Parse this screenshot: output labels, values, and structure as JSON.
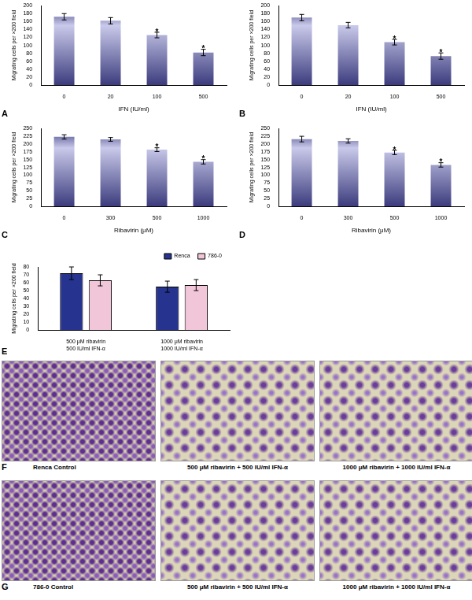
{
  "chart_data": [
    {
      "type": "bar",
      "panel": "A",
      "x_label": "IFN (IU/ml)",
      "y_label": "Migrating cells per ×200 field",
      "categories": [
        "0",
        "20",
        "100",
        "500"
      ],
      "values": [
        172,
        162,
        126,
        82
      ],
      "errors": [
        8,
        8,
        7,
        8
      ],
      "color": "#3c3c7e",
      "ylim": [
        0,
        200
      ],
      "yticks": [
        0,
        20,
        40,
        60,
        80,
        100,
        120,
        140,
        160,
        180,
        200
      ],
      "grid": false,
      "annotations": [
        {
          "category": "100",
          "text": "*"
        },
        {
          "category": "500",
          "text": "*"
        }
      ]
    },
    {
      "type": "bar",
      "panel": "B",
      "x_label": "IFN (IU/ml)",
      "y_label": "Migrating cells per ×200 field",
      "categories": [
        "0",
        "20",
        "100",
        "500"
      ],
      "values": [
        170,
        151,
        108,
        73
      ],
      "errors": [
        8,
        7,
        7,
        8
      ],
      "color": "#3c3c7e",
      "ylim": [
        0,
        200
      ],
      "yticks": [
        0,
        20,
        40,
        60,
        80,
        100,
        120,
        140,
        160,
        180,
        200
      ],
      "grid": false,
      "annotations": [
        {
          "category": "100",
          "text": "*"
        },
        {
          "category": "500",
          "text": "*"
        }
      ]
    },
    {
      "type": "bar",
      "panel": "C",
      "x_label": "Ribavirin (μM)",
      "y_label": "Migrating cells per ×200 field",
      "categories": [
        "0",
        "300",
        "500",
        "1000"
      ],
      "values": [
        223,
        215,
        182,
        143
      ],
      "errors": [
        7,
        6,
        6,
        7
      ],
      "color": "#3c3c7e",
      "ylim": [
        0,
        250
      ],
      "yticks": [
        0,
        25,
        50,
        75,
        100,
        125,
        150,
        175,
        200,
        225,
        250
      ],
      "grid": false,
      "annotations": [
        {
          "category": "500",
          "text": "*"
        },
        {
          "category": "1000",
          "text": "*"
        }
      ]
    },
    {
      "type": "bar",
      "panel": "D",
      "x_label": "Ribavirin (μM)",
      "y_label": "Migrating cells per ×200 field",
      "categories": [
        "0",
        "300",
        "500",
        "1000"
      ],
      "values": [
        216,
        210,
        173,
        133
      ],
      "errors": [
        9,
        7,
        7,
        7
      ],
      "color": "#3c3c7e",
      "ylim": [
        0,
        250
      ],
      "yticks": [
        0,
        25,
        50,
        75,
        100,
        125,
        150,
        175,
        200,
        225,
        250
      ],
      "grid": false,
      "annotations": [
        {
          "category": "500",
          "text": "*"
        },
        {
          "category": "1000",
          "text": "*"
        }
      ]
    },
    {
      "type": "bar",
      "panel": "E",
      "y_label": "Migrating cells per ×200 field",
      "categories": [
        [
          "500 μM ribavirin",
          "500 IU/ml IFN-α"
        ],
        [
          "1000 μM ribavirin",
          "1000 IU/ml IFN-α"
        ]
      ],
      "series": [
        {
          "name": "Renca",
          "color": "#26338f",
          "values": [
            72,
            55
          ],
          "errors": [
            8,
            7
          ]
        },
        {
          "name": "786-0",
          "color": "#f1c6d8",
          "values": [
            63,
            57
          ],
          "errors": [
            7,
            7
          ]
        }
      ],
      "ylim": [
        0,
        80
      ],
      "yticks": [
        0,
        10,
        20,
        30,
        40,
        50,
        60,
        70,
        80
      ],
      "grid": false,
      "legend": "top-right"
    }
  ],
  "images": [
    {
      "panel": "F",
      "captions": [
        "Renca Control",
        "500 μM ribavirin + 500 IU/ml IFN-α",
        "1000 μM ribavirin + 1000 IU/ml IFN-α"
      ]
    },
    {
      "panel": "G",
      "captions": [
        "786-0 Control",
        "500 μM ribavirin + 500 IU/ml IFN-α",
        "1000 μM ribavirin + 1000 IU/ml IFN-α"
      ]
    }
  ]
}
